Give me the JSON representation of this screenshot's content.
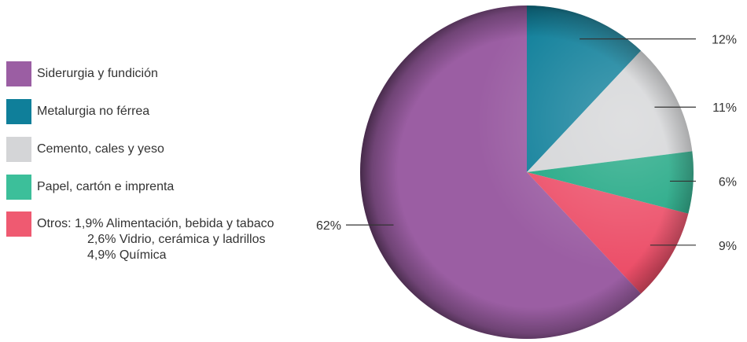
{
  "chart_data": {
    "type": "pie",
    "title": "",
    "slices": [
      {
        "label": "Metalurgia no férrea",
        "value": 12,
        "value_label": "12%",
        "color": "#0f7f9a"
      },
      {
        "label": "Cemento, cales y yeso",
        "value": 11,
        "value_label": "11%",
        "color": "#d4d5d7"
      },
      {
        "label": "Papel, cartón e imprenta",
        "value": 6,
        "value_label": "6%",
        "color": "#1fa783"
      },
      {
        "label": "Otros",
        "value": 9,
        "value_label": "9%",
        "color": "#ec4e68"
      },
      {
        "label": "Siderurgia y fundición",
        "value": 62,
        "value_label": "62%",
        "color": "#9b5ea3"
      }
    ],
    "legend": {
      "placement": "left",
      "items": [
        {
          "label": "Siderurgia y fundición",
          "color": "#9b5ea3"
        },
        {
          "label": "Metalurgia no férrea",
          "color": "#0f7f9a"
        },
        {
          "label": "Cemento, cales y yeso",
          "color": "#d4d5d7"
        },
        {
          "label": "Papel, cartón e imprenta",
          "color": "#3cbf9a"
        },
        {
          "label": "Otros: 1,9% Alimentación, bebida y tabaco",
          "color": "#ef5a71",
          "notes": [
            "2,6% Vidrio, cerámica y ladrillos",
            "4,9% Química"
          ]
        }
      ]
    }
  }
}
